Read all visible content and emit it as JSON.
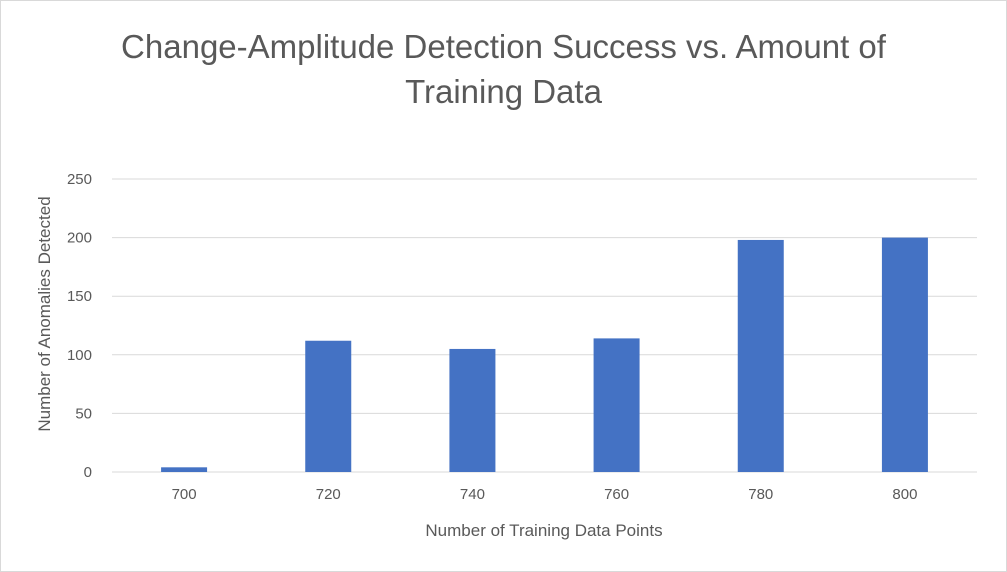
{
  "chart_data": {
    "type": "bar",
    "title_lines": [
      "Change-Amplitude Detection Success vs. Amount of",
      "Training Data"
    ],
    "xlabel": "Number of Training Data Points",
    "ylabel": "Number of Anomalies Detected",
    "categories": [
      "700",
      "720",
      "740",
      "760",
      "780",
      "800"
    ],
    "values": [
      4,
      112,
      105,
      114,
      198,
      200
    ],
    "ylim": [
      0,
      250
    ],
    "yticks": [
      0,
      50,
      100,
      150,
      200,
      250
    ],
    "grid": true,
    "legend": "none",
    "bar_color": "#4472c4",
    "grid_color": "#d9d9d9"
  }
}
